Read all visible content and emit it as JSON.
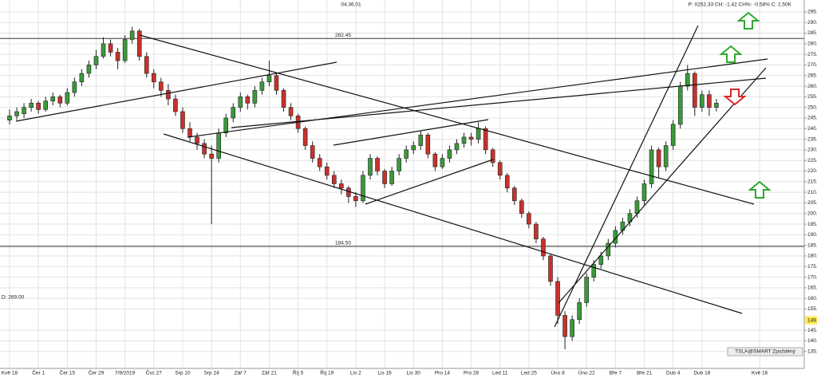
{
  "chart_data": {
    "type": "candlestick",
    "time_label": "04.36.01",
    "quote": "P: 0252.33 CH: -1.42 CH%: -0.58% C: 2.50K",
    "cursor_label": "D: 269.00",
    "legend": "TSLA@SMART Zpožděný",
    "up_color": "#3a9a3a",
    "down_color": "#c8322c",
    "grid": true,
    "ylim": [
      127,
      300.6
    ],
    "yticks": [
      {
        "value": 295,
        "label": "295.00"
      },
      {
        "value": 290,
        "label": "290.00"
      },
      {
        "value": 285,
        "label": "285.00"
      },
      {
        "value": 280,
        "label": "280.00"
      },
      {
        "value": 275,
        "label": "275.00"
      },
      {
        "value": 270,
        "label": "270.00"
      },
      {
        "value": 265,
        "label": "265.00"
      },
      {
        "value": 260,
        "label": "260.00"
      },
      {
        "value": 255,
        "label": "255.00"
      },
      {
        "value": 250,
        "label": "250.00"
      },
      {
        "value": 245,
        "label": "245.00"
      },
      {
        "value": 240,
        "label": "240.00"
      },
      {
        "value": 235,
        "label": "235.00"
      },
      {
        "value": 230,
        "label": "230.00"
      },
      {
        "value": 225,
        "label": "225.00"
      },
      {
        "value": 220,
        "label": "220.00"
      },
      {
        "value": 215,
        "label": "215.00"
      },
      {
        "value": 210,
        "label": "210.00"
      },
      {
        "value": 205,
        "label": "205.00"
      },
      {
        "value": 200,
        "label": "200.00"
      },
      {
        "value": 195,
        "label": "195.00"
      },
      {
        "value": 190,
        "label": "190.00"
      },
      {
        "value": 185,
        "label": "185.00"
      },
      {
        "value": 180,
        "label": "180.00"
      },
      {
        "value": 175,
        "label": "175.00"
      },
      {
        "value": 170,
        "label": "170.00"
      },
      {
        "value": 165,
        "label": "165.00"
      },
      {
        "value": 160,
        "label": "160.00"
      },
      {
        "value": 155,
        "label": "155.00"
      },
      {
        "value": 145,
        "label": "145.00"
      },
      {
        "value": 140,
        "label": "140.00"
      },
      {
        "value": 135,
        "label": "135.00"
      }
    ],
    "price_marker": {
      "value": 149.7,
      "label": "149.70"
    },
    "hlines": [
      {
        "value": 282.45,
        "label": "282.45"
      },
      {
        "value": 184.5,
        "label": "184.50"
      }
    ],
    "categories": [
      "Kvě 18",
      null,
      null,
      null,
      "Čer 1",
      null,
      null,
      null,
      "Čer 15",
      null,
      null,
      null,
      "Čer 29",
      null,
      null,
      null,
      "7/9/2019",
      null,
      null,
      null,
      "Čvc 27",
      null,
      null,
      null,
      "Srp 10",
      null,
      null,
      null,
      "Srp 24",
      null,
      null,
      null,
      "Zář 7",
      null,
      null,
      null,
      "Zář 21",
      null,
      null,
      null,
      "Říj 5",
      null,
      null,
      null,
      "Říj 19",
      null,
      null,
      null,
      "Lis 2",
      null,
      null,
      null,
      "Lis 16",
      null,
      null,
      null,
      "Lis 30",
      null,
      null,
      null,
      "Pro 14",
      null,
      null,
      null,
      "Pro 28",
      null,
      null,
      null,
      "Led 11",
      null,
      null,
      null,
      "Led 25",
      null,
      null,
      null,
      "Úno 8",
      null,
      null,
      null,
      "Úno 22",
      null,
      null,
      null,
      "Bře 7",
      null,
      null,
      null,
      "Bře 21",
      null,
      null,
      null,
      "Dub 4",
      null,
      null,
      null,
      "Dub 18",
      null,
      null,
      null,
      null,
      null,
      null,
      null,
      "Kvě 16"
    ],
    "ohlc": [
      [
        244,
        249,
        242,
        246
      ],
      [
        246,
        250,
        244,
        248
      ],
      [
        247,
        252,
        245,
        250
      ],
      [
        250,
        254,
        248,
        252
      ],
      [
        252,
        253,
        247,
        249
      ],
      [
        249,
        255,
        248,
        253
      ],
      [
        253,
        257,
        251,
        255
      ],
      [
        255,
        256,
        250,
        252
      ],
      [
        252,
        259,
        251,
        257
      ],
      [
        257,
        264,
        255,
        262
      ],
      [
        262,
        268,
        260,
        266
      ],
      [
        266,
        272,
        264,
        270
      ],
      [
        270,
        277,
        268,
        274
      ],
      [
        274,
        283,
        273,
        280
      ],
      [
        280,
        282,
        274,
        276
      ],
      [
        276,
        278,
        268,
        272
      ],
      [
        272,
        284,
        271,
        282
      ],
      [
        282,
        288,
        280,
        286
      ],
      [
        286,
        287,
        272,
        274
      ],
      [
        274,
        276,
        264,
        266
      ],
      [
        266,
        268,
        259,
        262
      ],
      [
        262,
        264,
        255,
        258
      ],
      [
        258,
        261,
        251,
        254
      ],
      [
        254,
        256,
        246,
        248
      ],
      [
        248,
        250,
        238,
        240
      ],
      [
        240,
        243,
        234,
        236
      ],
      [
        236,
        238,
        230,
        233
      ],
      [
        233,
        235,
        226,
        228
      ],
      [
        228,
        232,
        195,
        226
      ],
      [
        226,
        240,
        224,
        238
      ],
      [
        238,
        247,
        236,
        245
      ],
      [
        245,
        252,
        243,
        250
      ],
      [
        250,
        257,
        248,
        255
      ],
      [
        255,
        256,
        249,
        252
      ],
      [
        252,
        260,
        250,
        258
      ],
      [
        258,
        264,
        256,
        262
      ],
      [
        262,
        272,
        260,
        265
      ],
      [
        265,
        266,
        256,
        258
      ],
      [
        258,
        259,
        248,
        250
      ],
      [
        250,
        252,
        244,
        246
      ],
      [
        246,
        247,
        238,
        240
      ],
      [
        240,
        241,
        230,
        232
      ],
      [
        232,
        234,
        224,
        226
      ],
      [
        226,
        228,
        220,
        222
      ],
      [
        222,
        224,
        216,
        218
      ],
      [
        218,
        220,
        212,
        214
      ],
      [
        214,
        216,
        209,
        212
      ],
      [
        212,
        213,
        205,
        208
      ],
      [
        208,
        210,
        203,
        206
      ],
      [
        206,
        220,
        205,
        218
      ],
      [
        218,
        228,
        216,
        226
      ],
      [
        226,
        227,
        218,
        220
      ],
      [
        220,
        221,
        212,
        214
      ],
      [
        214,
        222,
        213,
        220
      ],
      [
        220,
        228,
        218,
        226
      ],
      [
        226,
        232,
        224,
        230
      ],
      [
        230,
        234,
        228,
        232
      ],
      [
        232,
        239,
        230,
        237
      ],
      [
        237,
        238,
        226,
        228
      ],
      [
        228,
        229,
        220,
        222
      ],
      [
        222,
        228,
        221,
        226
      ],
      [
        226,
        232,
        224,
        230
      ],
      [
        230,
        235,
        228,
        233
      ],
      [
        233,
        238,
        231,
        236
      ],
      [
        236,
        238,
        232,
        235
      ],
      [
        235,
        243,
        233,
        240
      ],
      [
        240,
        241,
        228,
        230
      ],
      [
        230,
        231,
        222,
        224
      ],
      [
        224,
        225,
        216,
        218
      ],
      [
        218,
        219,
        210,
        212
      ],
      [
        212,
        213,
        204,
        206
      ],
      [
        206,
        207,
        198,
        200
      ],
      [
        200,
        201,
        193,
        195
      ],
      [
        195,
        196,
        186,
        188
      ],
      [
        188,
        189,
        178,
        180
      ],
      [
        180,
        181,
        166,
        168
      ],
      [
        168,
        170,
        148,
        152
      ],
      [
        152,
        154,
        136,
        142
      ],
      [
        142,
        152,
        140,
        150
      ],
      [
        150,
        160,
        148,
        158
      ],
      [
        158,
        172,
        156,
        170
      ],
      [
        170,
        178,
        168,
        176
      ],
      [
        176,
        182,
        174,
        180
      ],
      [
        180,
        188,
        178,
        186
      ],
      [
        186,
        194,
        184,
        192
      ],
      [
        192,
        198,
        190,
        196
      ],
      [
        196,
        202,
        194,
        200
      ],
      [
        200,
        208,
        198,
        206
      ],
      [
        206,
        216,
        204,
        214
      ],
      [
        214,
        232,
        212,
        230
      ],
      [
        230,
        231,
        217,
        222
      ],
      [
        222,
        234,
        220,
        232
      ],
      [
        232,
        244,
        230,
        242
      ],
      [
        242,
        262,
        240,
        260
      ],
      [
        260,
        270,
        258,
        266
      ],
      [
        266,
        267,
        246,
        250
      ],
      [
        250,
        258,
        248,
        256
      ],
      [
        256,
        258,
        246,
        250
      ],
      [
        250,
        254,
        248,
        252
      ],
      null,
      null,
      null,
      null,
      null,
      null
    ]
  }
}
